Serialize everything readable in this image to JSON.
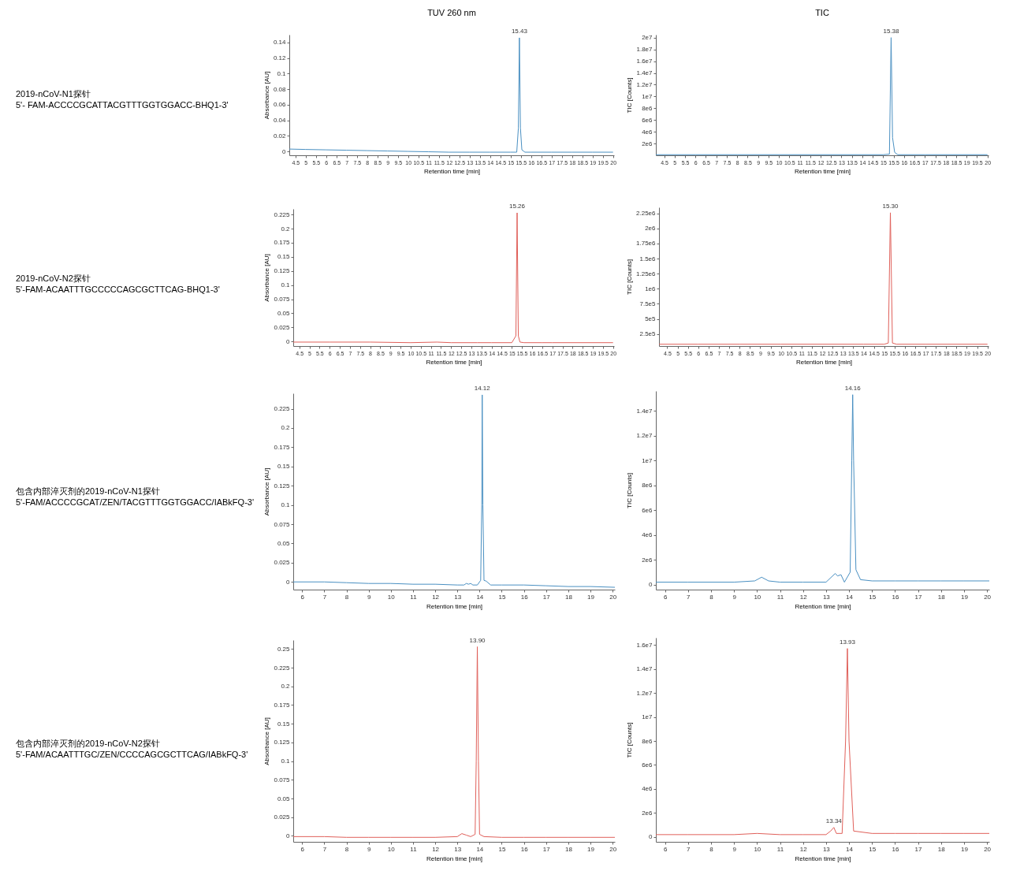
{
  "chart_data": [
    {
      "type": "line",
      "title": "TUV 260 nm",
      "xlabel": "Retention time [min]",
      "ylabel": "Absorbance [AU]",
      "annotations": [
        "2019-nCoV-N1探针\n5'- FAM-ACCCCGCATTACGTTTGGTGGACC-BHQ1-3'",
        {
          "text": "15.43",
          "x": 15.43,
          "y": 0.146
        }
      ],
      "x": [
        4.2,
        5,
        6,
        7,
        8,
        9,
        10,
        11,
        12,
        13,
        14,
        15,
        15.3,
        15.38,
        15.43,
        15.48,
        15.55,
        15.7,
        16,
        17,
        18,
        19,
        20
      ],
      "series": [
        {
          "color": "#4a90c2",
          "values": [
            0.003,
            0.0025,
            0.002,
            0.0015,
            0.001,
            0.0005,
            0,
            -0.0005,
            -0.001,
            -0.001,
            -0.001,
            -0.001,
            -0.001,
            0.03,
            0.146,
            0.03,
            0.002,
            -0.001,
            -0.001,
            -0.001,
            -0.001,
            -0.001,
            -0.001
          ]
        }
      ],
      "xlim": [
        4.2,
        20.05
      ],
      "ylim": [
        -0.005,
        0.15
      ],
      "xticks": [
        4.5,
        5,
        5.5,
        6,
        6.5,
        7,
        7.5,
        8,
        8.5,
        9,
        9.5,
        10,
        10.5,
        11,
        11.5,
        12,
        12.5,
        13,
        13.5,
        14,
        14.5,
        15,
        15.5,
        16,
        16.5,
        17,
        17.5,
        18,
        18.5,
        19,
        19.5,
        20
      ],
      "yticks": [
        0,
        0.02,
        0.04,
        0.06,
        0.08,
        0.1,
        0.12,
        0.14
      ]
    },
    {
      "type": "line",
      "title": "TIC",
      "xlabel": "Retention time [min]",
      "ylabel": "TIC [Counts]",
      "annotations": [
        {
          "text": "15.38",
          "x": 15.38,
          "y": 20000000
        }
      ],
      "x": [
        4.1,
        6,
        8,
        10,
        12,
        14,
        15,
        15.3,
        15.38,
        15.45,
        15.55,
        15.7,
        17,
        20
      ],
      "series": [
        {
          "color": "#4a90c2",
          "values": [
            100000,
            100000,
            100000,
            100000,
            100000,
            100000,
            100000,
            200000,
            20000000,
            3000000,
            500000,
            100000,
            100000,
            100000
          ]
        }
      ],
      "xlim": [
        4.1,
        20.05
      ],
      "ylim": [
        0,
        20500000
      ],
      "xticks": [
        4.5,
        5,
        5.5,
        6,
        6.5,
        7,
        7.5,
        8,
        8.5,
        9,
        9.5,
        10,
        10.5,
        11,
        11.5,
        12,
        12.5,
        13,
        13.5,
        14,
        14.5,
        15,
        15.5,
        16,
        16.5,
        17,
        17.5,
        18,
        18.5,
        19,
        19.5,
        20
      ],
      "yticks": [
        {
          "value": 2000000,
          "label": "2e6"
        },
        {
          "value": 4000000,
          "label": "4e6"
        },
        {
          "value": 6000000,
          "label": "6e6"
        },
        {
          "value": 8000000,
          "label": "8e6"
        },
        {
          "value": 10000000,
          "label": "1e7"
        },
        {
          "value": 12000000,
          "label": "1.2e7"
        },
        {
          "value": 14000000,
          "label": "1.4e7"
        },
        {
          "value": 16000000,
          "label": "1.6e7"
        },
        {
          "value": 18000000,
          "label": "1.8e7"
        },
        {
          "value": 20000000,
          "label": "2e7"
        }
      ]
    },
    {
      "type": "line",
      "xlabel": "Retention time [min]",
      "ylabel": "Absorbance [AU]",
      "annotations": [
        "2019-nCoV-N2探针\n5'-FAM-ACAATTTGCCCCCAGCGCTTCAG-BHQ1-3'",
        {
          "text": "15.26",
          "x": 15.26,
          "y": 0.228
        }
      ],
      "x": [
        4.2,
        6,
        8,
        10,
        11.3,
        12,
        13,
        13.3,
        14,
        15,
        15.2,
        15.26,
        15.32,
        15.4,
        15.6,
        16,
        16.5,
        17,
        20
      ],
      "series": [
        {
          "color": "#e0605a",
          "values": [
            -0.001,
            -0.001,
            -0.001,
            -0.002,
            -0.001,
            -0.002,
            -0.002,
            -0.002,
            -0.002,
            -0.002,
            0.01,
            0.228,
            0.01,
            -0.001,
            -0.002,
            -0.002,
            -0.002,
            -0.002,
            -0.002
          ]
        }
      ],
      "xlim": [
        4.2,
        20.05
      ],
      "ylim": [
        -0.008,
        0.235
      ],
      "xticks": [
        4.5,
        5,
        5.5,
        6,
        6.5,
        7,
        7.5,
        8,
        8.5,
        9,
        9.5,
        10,
        10.5,
        11,
        11.5,
        12,
        12.5,
        13,
        13.5,
        14,
        14.5,
        15,
        15.5,
        16,
        16.5,
        17,
        17.5,
        18,
        18.5,
        19,
        19.5,
        20
      ],
      "yticks": [
        0,
        0.025,
        0.05,
        0.075,
        0.1,
        0.125,
        0.15,
        0.175,
        0.2,
        0.225
      ]
    },
    {
      "type": "line",
      "xlabel": "Retention time [min]",
      "ylabel": "TIC [Counts]",
      "annotations": [
        {
          "text": "15.30",
          "x": 15.3,
          "y": 2260000
        }
      ],
      "x": [
        4.1,
        6,
        8,
        10,
        12,
        14,
        15,
        15.2,
        15.3,
        15.4,
        15.6,
        17,
        20
      ],
      "series": [
        {
          "color": "#e0605a",
          "values": [
            80000,
            80000,
            80000,
            80000,
            80000,
            80000,
            80000,
            100000,
            2260000,
            100000,
            80000,
            80000,
            80000
          ]
        }
      ],
      "xlim": [
        4.1,
        20.05
      ],
      "ylim": [
        50000,
        2350000
      ],
      "xticks": [
        4.5,
        5,
        5.5,
        6,
        6.5,
        7,
        7.5,
        8,
        8.5,
        9,
        9.5,
        10,
        10.5,
        11,
        11.5,
        12,
        12.5,
        13,
        13.5,
        14,
        14.5,
        15,
        15.5,
        16,
        16.5,
        17,
        17.5,
        18,
        18.5,
        19,
        19.5,
        20
      ],
      "yticks": [
        {
          "value": 250000,
          "label": "2.5e5"
        },
        {
          "value": 500000,
          "label": "5e5"
        },
        {
          "value": 750000,
          "label": "7.5e5"
        },
        {
          "value": 1000000,
          "label": "1e6"
        },
        {
          "value": 1250000,
          "label": "1.25e6"
        },
        {
          "value": 1500000,
          "label": "1.5e6"
        },
        {
          "value": 1750000,
          "label": "1.75e6"
        },
        {
          "value": 2000000,
          "label": "2e6"
        },
        {
          "value": 2250000,
          "label": "2.25e6"
        }
      ]
    },
    {
      "type": "line",
      "xlabel": "Retention time [min]",
      "ylabel": "Absorbance [AU]",
      "annotations": [
        "包含内部淬灭剂的2019-nCoV-N1探针\n5'-FAM/ACCCCGCAT/ZEN/TACGTTTGGTGGACC/IABkFQ-3'",
        {
          "text": "14.12",
          "x": 14.12,
          "y": 0.243
        }
      ],
      "x": [
        5.6,
        7,
        8,
        9,
        10,
        11,
        12,
        13,
        13.3,
        13.4,
        13.5,
        13.6,
        13.7,
        13.9,
        14.05,
        14.1,
        14.12,
        14.15,
        14.2,
        14.3,
        14.5,
        15,
        16,
        17,
        18,
        19,
        20.1
      ],
      "series": [
        {
          "color": "#4a90c2",
          "values": [
            0,
            0,
            -0.001,
            -0.002,
            -0.002,
            -0.003,
            -0.003,
            -0.004,
            -0.004,
            -0.002,
            -0.003,
            -0.002,
            -0.004,
            -0.004,
            0.002,
            0.1,
            0.243,
            0.1,
            0.002,
            0.001,
            -0.004,
            -0.004,
            -0.004,
            -0.005,
            -0.006,
            -0.006,
            -0.007
          ]
        }
      ],
      "xlim": [
        5.6,
        20.1
      ],
      "ylim": [
        -0.01,
        0.245
      ],
      "xticks": [
        6,
        7,
        8,
        9,
        10,
        11,
        12,
        13,
        14,
        15,
        16,
        17,
        18,
        19,
        20
      ],
      "yticks": [
        0,
        0.025,
        0.05,
        0.075,
        0.1,
        0.125,
        0.15,
        0.175,
        0.2,
        0.225
      ]
    },
    {
      "type": "line",
      "xlabel": "Retention time [min]",
      "ylabel": "TIC [Counts]",
      "annotations": [
        {
          "text": "14.16",
          "x": 14.16,
          "y": 15300000
        }
      ],
      "x": [
        5.6,
        7,
        8,
        9,
        9.9,
        10.2,
        10.5,
        11,
        12,
        13,
        13.4,
        13.5,
        13.65,
        13.8,
        14.05,
        14.12,
        14.16,
        14.2,
        14.3,
        14.5,
        15,
        16,
        17,
        18,
        19,
        20.1
      ],
      "series": [
        {
          "color": "#4a90c2",
          "values": [
            200000,
            200000,
            200000,
            200000,
            300000,
            600000,
            300000,
            200000,
            200000,
            200000,
            900000,
            700000,
            800000,
            200000,
            1000000,
            10000000,
            15300000,
            10000000,
            1200000,
            400000,
            300000,
            300000,
            300000,
            300000,
            300000,
            300000
          ]
        }
      ],
      "xlim": [
        5.6,
        20.1
      ],
      "ylim": [
        -400000,
        15600000
      ],
      "xticks": [
        6,
        7,
        8,
        9,
        10,
        11,
        12,
        13,
        14,
        15,
        16,
        17,
        18,
        19,
        20
      ],
      "yticks": [
        {
          "value": 0,
          "label": "0"
        },
        {
          "value": 2000000,
          "label": "2e6"
        },
        {
          "value": 4000000,
          "label": "4e6"
        },
        {
          "value": 6000000,
          "label": "6e6"
        },
        {
          "value": 8000000,
          "label": "8e6"
        },
        {
          "value": 10000000,
          "label": "1e7"
        },
        {
          "value": 12000000,
          "label": "1.2e7"
        },
        {
          "value": 14000000,
          "label": "1.4e7"
        }
      ]
    },
    {
      "type": "line",
      "xlabel": "Retention time [min]",
      "ylabel": "Absorbance [AU]",
      "annotations": [
        "包含内部淬灭剂的2019-nCoV-N2探针\n5'-FAM/ACAATTTGC/ZEN/CCCCAGCGCTTCAG/IABkFQ-3'",
        {
          "text": "13.90",
          "x": 13.9,
          "y": 0.253
        }
      ],
      "x": [
        5.6,
        7,
        8,
        9,
        10,
        11,
        12,
        13,
        13.2,
        13.4,
        13.6,
        13.8,
        13.85,
        13.9,
        13.95,
        14,
        14.2,
        15,
        16,
        17,
        18,
        19,
        20.1
      ],
      "series": [
        {
          "color": "#e0605a",
          "values": [
            -0.001,
            -0.001,
            -0.002,
            -0.002,
            -0.002,
            -0.002,
            -0.002,
            -0.001,
            0.003,
            0.001,
            -0.001,
            0.002,
            0.1,
            0.253,
            0.1,
            0.002,
            -0.001,
            -0.002,
            -0.002,
            -0.002,
            -0.002,
            -0.002,
            -0.002
          ]
        }
      ],
      "xlim": [
        5.6,
        20.1
      ],
      "ylim": [
        -0.008,
        0.262
      ],
      "xticks": [
        6,
        7,
        8,
        9,
        10,
        11,
        12,
        13,
        14,
        15,
        16,
        17,
        18,
        19,
        20
      ],
      "yticks": [
        0,
        0.025,
        0.05,
        0.075,
        0.1,
        0.125,
        0.15,
        0.175,
        0.2,
        0.225,
        0.25
      ]
    },
    {
      "type": "line",
      "xlabel": "Retention time [min]",
      "ylabel": "TIC [Counts]",
      "annotations": [
        {
          "text": "13.93",
          "x": 13.93,
          "y": 15700000
        },
        {
          "text": "13.34",
          "x": 13.34,
          "y": 800000
        }
      ],
      "x": [
        5.6,
        7,
        8,
        9,
        10,
        11,
        12,
        13,
        13.2,
        13.34,
        13.45,
        13.7,
        13.85,
        13.93,
        14,
        14.2,
        15,
        16,
        17,
        18,
        19,
        20.1
      ],
      "series": [
        {
          "color": "#e0605a",
          "values": [
            200000,
            200000,
            200000,
            200000,
            300000,
            200000,
            200000,
            200000,
            500000,
            800000,
            300000,
            300000,
            8000000,
            15700000,
            8000000,
            500000,
            300000,
            300000,
            300000,
            300000,
            300000,
            300000
          ]
        }
      ],
      "xlim": [
        5.6,
        20.1
      ],
      "ylim": [
        -400000,
        16600000
      ],
      "xticks": [
        6,
        7,
        8,
        9,
        10,
        11,
        12,
        13,
        14,
        15,
        16,
        17,
        18,
        19,
        20
      ],
      "yticks": [
        {
          "value": 0,
          "label": "0"
        },
        {
          "value": 2000000,
          "label": "2e6"
        },
        {
          "value": 4000000,
          "label": "4e6"
        },
        {
          "value": 6000000,
          "label": "6e6"
        },
        {
          "value": 8000000,
          "label": "8e6"
        },
        {
          "value": 10000000,
          "label": "1e7"
        },
        {
          "value": 12000000,
          "label": "1.2e7"
        },
        {
          "value": 14000000,
          "label": "1.4e7"
        },
        {
          "value": 16000000,
          "label": "1.6e7"
        }
      ]
    }
  ]
}
